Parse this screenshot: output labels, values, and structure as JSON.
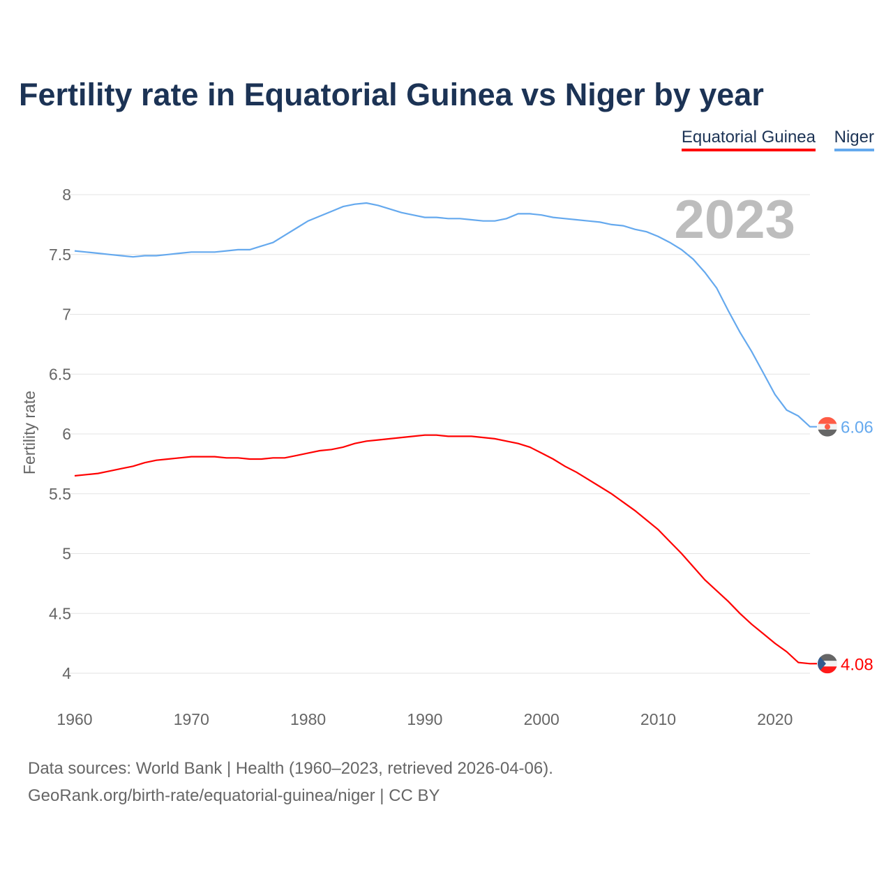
{
  "chart_data": {
    "type": "line",
    "title": "Fertility rate in Equatorial Guinea vs Niger by year",
    "xlabel": "",
    "ylabel": "Fertility rate",
    "xlim": [
      1960,
      2023
    ],
    "ylim": [
      4,
      8
    ],
    "x_ticks": [
      "1960",
      "1970",
      "1980",
      "1990",
      "2000",
      "2010",
      "2020"
    ],
    "y_ticks": [
      "4",
      "4.5",
      "5",
      "5.5",
      "6",
      "6.5",
      "7",
      "7.5",
      "8"
    ],
    "grid": true,
    "legend_position": "top-right",
    "year_label": "2023",
    "x": [
      1960,
      1961,
      1962,
      1963,
      1964,
      1965,
      1966,
      1967,
      1968,
      1969,
      1970,
      1971,
      1972,
      1973,
      1974,
      1975,
      1976,
      1977,
      1978,
      1979,
      1980,
      1981,
      1982,
      1983,
      1984,
      1985,
      1986,
      1987,
      1988,
      1989,
      1990,
      1991,
      1992,
      1993,
      1994,
      1995,
      1996,
      1997,
      1998,
      1999,
      2000,
      2001,
      2002,
      2003,
      2004,
      2005,
      2006,
      2007,
      2008,
      2009,
      2010,
      2011,
      2012,
      2013,
      2014,
      2015,
      2016,
      2017,
      2018,
      2019,
      2020,
      2021,
      2022,
      2023
    ],
    "series": [
      {
        "name": "Equatorial Guinea",
        "color": "#ff0000",
        "end_label": "4.08",
        "values": [
          5.65,
          5.66,
          5.67,
          5.69,
          5.71,
          5.73,
          5.76,
          5.78,
          5.79,
          5.8,
          5.81,
          5.81,
          5.81,
          5.8,
          5.8,
          5.79,
          5.79,
          5.8,
          5.8,
          5.82,
          5.84,
          5.86,
          5.87,
          5.89,
          5.92,
          5.94,
          5.95,
          5.96,
          5.97,
          5.98,
          5.99,
          5.99,
          5.98,
          5.98,
          5.98,
          5.97,
          5.96,
          5.94,
          5.92,
          5.89,
          5.84,
          5.79,
          5.73,
          5.68,
          5.62,
          5.56,
          5.5,
          5.43,
          5.36,
          5.28,
          5.2,
          5.1,
          5.0,
          4.89,
          4.78,
          4.69,
          4.6,
          4.5,
          4.41,
          4.33,
          4.25,
          4.18,
          4.09,
          4.08
        ]
      },
      {
        "name": "Niger",
        "color": "#65a9ee",
        "end_label": "6.06",
        "values": [
          7.53,
          7.52,
          7.51,
          7.5,
          7.49,
          7.48,
          7.49,
          7.49,
          7.5,
          7.51,
          7.52,
          7.52,
          7.52,
          7.53,
          7.54,
          7.54,
          7.57,
          7.6,
          7.66,
          7.72,
          7.78,
          7.82,
          7.86,
          7.9,
          7.92,
          7.93,
          7.91,
          7.88,
          7.85,
          7.83,
          7.81,
          7.81,
          7.8,
          7.8,
          7.79,
          7.78,
          7.78,
          7.8,
          7.84,
          7.84,
          7.83,
          7.81,
          7.8,
          7.79,
          7.78,
          7.77,
          7.75,
          7.74,
          7.71,
          7.69,
          7.65,
          7.6,
          7.54,
          7.46,
          7.35,
          7.22,
          7.03,
          6.85,
          6.69,
          6.51,
          6.33,
          6.2,
          6.15,
          6.06
        ]
      }
    ]
  },
  "footer": {
    "line1": "Data sources: World Bank | Health (1960–2023, retrieved 2026-04-06).",
    "line2": "GeoRank.org/birth-rate/equatorial-guinea/niger | CC BY"
  }
}
